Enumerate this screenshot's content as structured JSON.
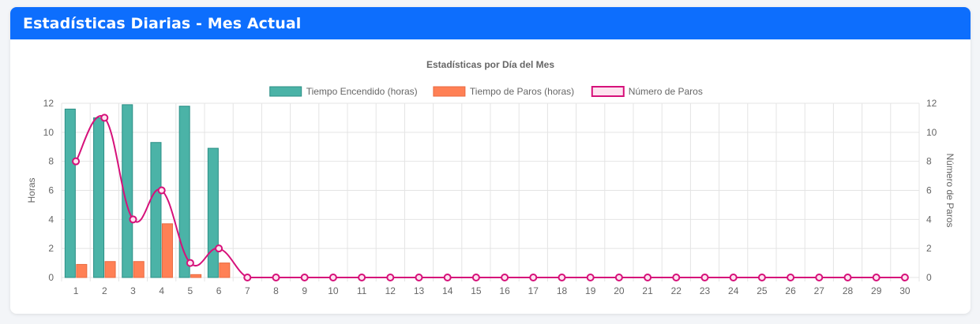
{
  "card": {
    "title": "Estadísticas Diarias - Mes Actual"
  },
  "chart_data": {
    "type": "bar",
    "title": "Estadísticas por Día del Mes",
    "categories": [
      "1",
      "2",
      "3",
      "4",
      "5",
      "6",
      "7",
      "8",
      "9",
      "10",
      "11",
      "12",
      "13",
      "14",
      "15",
      "16",
      "17",
      "18",
      "19",
      "20",
      "21",
      "22",
      "23",
      "24",
      "25",
      "26",
      "27",
      "28",
      "29",
      "30"
    ],
    "series": [
      {
        "name": "Tiempo Encendido (horas)",
        "type": "bar",
        "axis": "left",
        "color": "#4bb3a7",
        "border": "#2b8f86",
        "values": [
          11.6,
          11.0,
          11.9,
          9.3,
          11.8,
          8.9,
          0,
          0,
          0,
          0,
          0,
          0,
          0,
          0,
          0,
          0,
          0,
          0,
          0,
          0,
          0,
          0,
          0,
          0,
          0,
          0,
          0,
          0,
          0,
          0
        ]
      },
      {
        "name": "Tiempo de Paros (horas)",
        "type": "bar",
        "axis": "left",
        "color": "#ff8055",
        "border": "#e86a40",
        "values": [
          0.9,
          1.1,
          1.1,
          3.7,
          0.2,
          1.0,
          0,
          0,
          0,
          0,
          0,
          0,
          0,
          0,
          0,
          0,
          0,
          0,
          0,
          0,
          0,
          0,
          0,
          0,
          0,
          0,
          0,
          0,
          0,
          0
        ]
      },
      {
        "name": "Número de Paros",
        "type": "line",
        "axis": "right",
        "color": "#d6117a",
        "fill": "#fde3ef",
        "values": [
          8,
          11,
          4,
          6,
          1,
          2,
          0,
          0,
          0,
          0,
          0,
          0,
          0,
          0,
          0,
          0,
          0,
          0,
          0,
          0,
          0,
          0,
          0,
          0,
          0,
          0,
          0,
          0,
          0,
          0
        ]
      }
    ],
    "ylabel": "Horas",
    "y2label": "Número de Paros",
    "ylim": [
      0,
      12
    ],
    "y2lim": [
      0,
      12
    ],
    "yticks": [
      "0",
      "2",
      "4",
      "6",
      "8",
      "10",
      "12"
    ],
    "y2ticks": [
      "0",
      "2",
      "4",
      "6",
      "8",
      "10",
      "12"
    ],
    "legend_position": "top",
    "grid": true
  }
}
